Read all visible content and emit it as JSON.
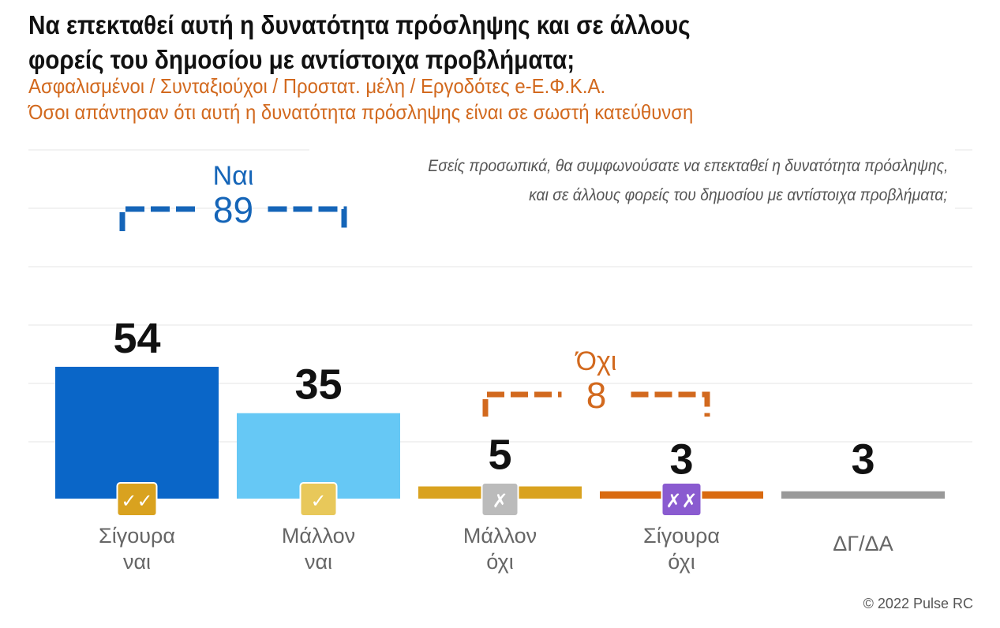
{
  "title_lines": [
    "Να επεκταθεί αυτή η δυνατότητα πρόσληψης και σε άλλους",
    "φορείς του δημοσίου με αντίστοιχα προβλήματα;"
  ],
  "subtitle_lines": [
    "Ασφαλισμένοι / Συνταξιούχοι / Προστατ. μέλη / Εργοδότες e-Ε.Φ.Κ.Α.",
    "Όσοι απάντησαν ότι αυτή η δυνατότητα πρόσληψης είναι σε σωστή κατεύθυνση"
  ],
  "question_lines": [
    "Εσείς προσωπικά, θα συμφωνούσατε να επεκταθεί η δυνατότητα πρόσληψης,",
    "και σε άλλους φορείς του δημοσίου με αντίστοιχα προβλήματα;"
  ],
  "copyright": "© 2022 Pulse RC",
  "colors": {
    "title": "#111111",
    "subtitle": "#d2691e",
    "yes_group": "#1565b8",
    "no_group": "#d2691e"
  },
  "chart_data": {
    "type": "bar",
    "categories": [
      [
        "Σίγουρα",
        "ναι"
      ],
      [
        "Μάλλον",
        "ναι"
      ],
      [
        "Μάλλον",
        "όχι"
      ],
      [
        "Σίγουρα",
        "όχι"
      ],
      [
        "ΔΓ/ΔΑ"
      ]
    ],
    "values": [
      54,
      35,
      5,
      3,
      3
    ],
    "bar_colors": [
      "#0a66c8",
      "#66c8f5",
      "#d9a21f",
      "#d96a10",
      "#999999"
    ],
    "icons": [
      {
        "name": "double-check-icon",
        "glyph": "✓✓",
        "color": "#d9a21f"
      },
      {
        "name": "check-icon",
        "glyph": "✓",
        "color": "#e8c85a"
      },
      {
        "name": "cross-icon",
        "glyph": "✗",
        "color": "#bbbbbb"
      },
      {
        "name": "double-cross-icon",
        "glyph": "✗✗",
        "color": "#8a5bd0"
      },
      null
    ],
    "groups": [
      {
        "label": "Ναι",
        "value": "89",
        "from": 0,
        "to": 1,
        "color": "#1565b8"
      },
      {
        "label": "Όχι",
        "value": "8",
        "from": 2,
        "to": 3,
        "color": "#d2691e"
      }
    ],
    "ylim": [
      0,
      100
    ],
    "grid": true
  }
}
